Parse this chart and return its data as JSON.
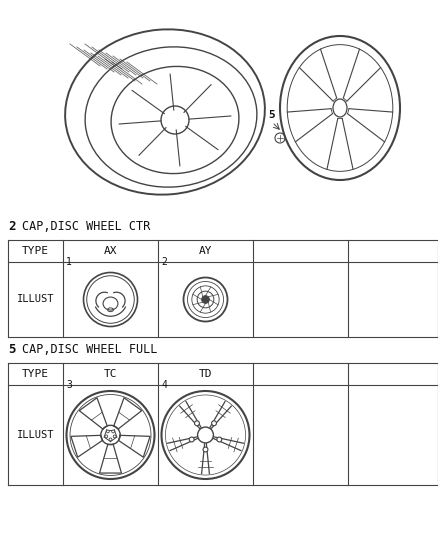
{
  "bg_color": "#ffffff",
  "section1_label": "2",
  "section1_title": "CAP,DISC WHEEL CTR",
  "section1_types": [
    "TYPE",
    "AX",
    "AY",
    "",
    ""
  ],
  "section1_illust": "ILLUST",
  "section1_item1": "1",
  "section1_item2": "2",
  "section2_label": "5",
  "section2_title": "CAP,DISC WHEEL FULL",
  "section2_types": [
    "TYPE",
    "TC",
    "TD",
    "",
    ""
  ],
  "section2_illust": "ILLUST",
  "section2_item1": "3",
  "section2_item2": "4",
  "line_color": "#444444",
  "text_color": "#111111"
}
